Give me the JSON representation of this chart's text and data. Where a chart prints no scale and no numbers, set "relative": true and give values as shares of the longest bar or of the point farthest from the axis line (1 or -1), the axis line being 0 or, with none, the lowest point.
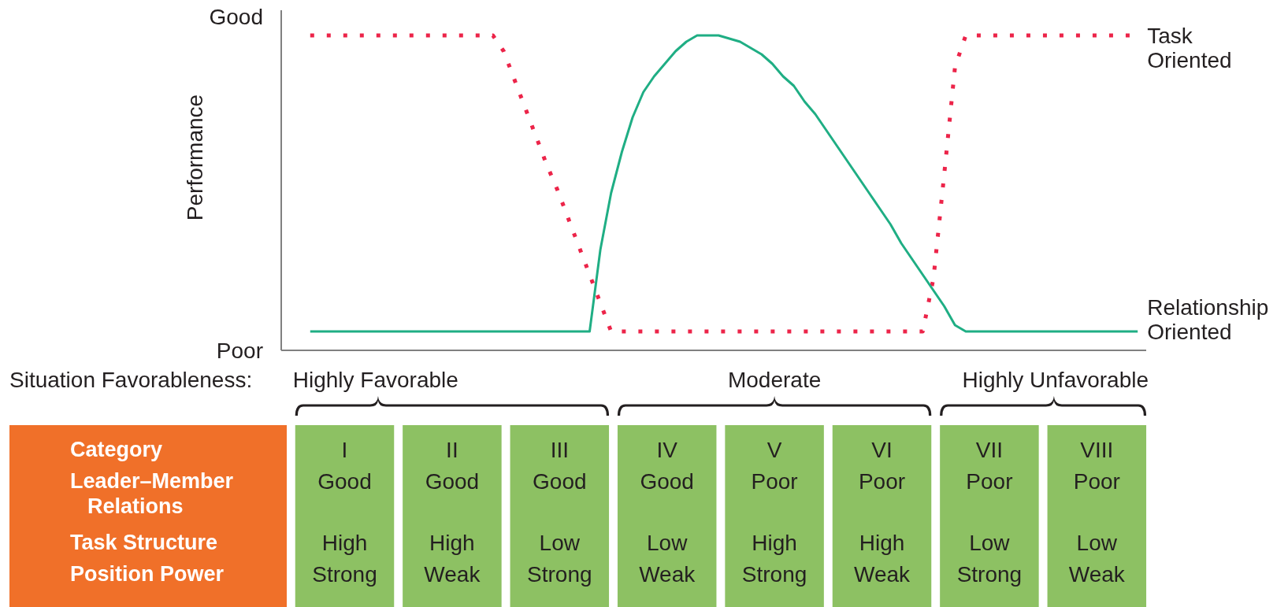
{
  "chart_data": [
    {
      "type": "line",
      "relative": true,
      "ylabel": "Performance",
      "annotations": [
        "Good",
        "Poor"
      ],
      "categories": [
        null,
        null,
        null,
        null,
        null,
        null,
        null,
        null,
        null,
        null,
        null,
        null,
        null,
        null,
        null,
        null,
        null,
        null,
        null,
        null,
        null,
        null,
        null,
        null,
        null,
        null,
        null,
        null,
        null,
        null,
        null,
        null,
        null,
        null,
        null,
        null,
        null,
        null,
        null,
        null,
        null,
        null,
        null,
        null,
        null,
        null,
        null,
        null,
        null,
        null,
        null,
        null,
        null,
        null,
        null,
        null,
        null,
        null,
        null,
        null,
        null,
        null,
        null,
        null,
        null,
        null,
        null,
        null,
        null,
        null,
        null,
        null,
        null,
        null,
        null,
        null,
        null,
        null
      ],
      "series": [
        {
          "name": "Task Oriented",
          "color": "#ec2449",
          "line_style": "dotted",
          "values": [
            1,
            1,
            1,
            1,
            1,
            1,
            1,
            1,
            1,
            1,
            1,
            1,
            1,
            1,
            1,
            1,
            1,
            1,
            0.95,
            0.86,
            0.77,
            0.68,
            0.59,
            0.51,
            0.42,
            0.33,
            0.24,
            0.15,
            0.06,
            0.06,
            0.06,
            0.06,
            0.06,
            0.06,
            0.06,
            0.06,
            0.06,
            0.06,
            0.06,
            0.06,
            0.06,
            0.06,
            0.06,
            0.06,
            0.06,
            0.06,
            0.06,
            0.06,
            0.06,
            0.06,
            0.06,
            0.06,
            0.06,
            0.06,
            0.06,
            0.06,
            0.06,
            0.06,
            0.23,
            0.56,
            0.9,
            1,
            1,
            1,
            1,
            1,
            1,
            1,
            1,
            1,
            1,
            1,
            1,
            1,
            1,
            1,
            1,
            1
          ]
        },
        {
          "name": "Relationship Oriented",
          "color": "#1fae84",
          "line_style": "solid",
          "values": [
            0.06,
            0.06,
            0.06,
            0.06,
            0.06,
            0.06,
            0.06,
            0.06,
            0.06,
            0.06,
            0.06,
            0.06,
            0.06,
            0.06,
            0.06,
            0.06,
            0.06,
            0.06,
            0.06,
            0.06,
            0.06,
            0.06,
            0.06,
            0.06,
            0.06,
            0.06,
            0.06,
            0.32,
            0.5,
            0.63,
            0.74,
            0.82,
            0.87,
            0.91,
            0.95,
            0.98,
            1,
            1,
            1,
            0.99,
            0.98,
            0.96,
            0.94,
            0.91,
            0.87,
            0.84,
            0.79,
            0.75,
            0.7,
            0.65,
            0.6,
            0.55,
            0.5,
            0.45,
            0.4,
            0.34,
            0.29,
            0.24,
            0.19,
            0.14,
            0.08,
            0.06,
            0.06,
            0.06,
            0.06,
            0.06,
            0.06,
            0.06,
            0.06,
            0.06,
            0.06,
            0.06,
            0.06,
            0.06,
            0.06,
            0.06,
            0.06,
            0.06
          ]
        }
      ]
    },
    {
      "type": "other",
      "categories": [
        null,
        null,
        null,
        null,
        null,
        null,
        null,
        null
      ],
      "y_categories": [
        "Category",
        "Leader–Member Relations",
        "Task Structure",
        "Position Power"
      ],
      "cell_labels": [
        [
          "I",
          "II",
          "III",
          "IV",
          "V",
          "VI",
          "VII",
          "VIII"
        ],
        [
          "Good",
          "Good",
          "Good",
          "Good",
          "Poor",
          "Poor",
          "Poor",
          "Poor"
        ],
        [
          "High",
          "High",
          "Low",
          "Low",
          "High",
          "High",
          "Low",
          "Low"
        ],
        [
          "Strong",
          "Weak",
          "Strong",
          "Weak",
          "Strong",
          "Weak",
          "Strong",
          "Weak"
        ]
      ],
      "annotations": [
        "Situation Favorableness:",
        "Highly Favorable",
        "Moderate",
        "Highly Unfavorable"
      ]
    }
  ]
}
